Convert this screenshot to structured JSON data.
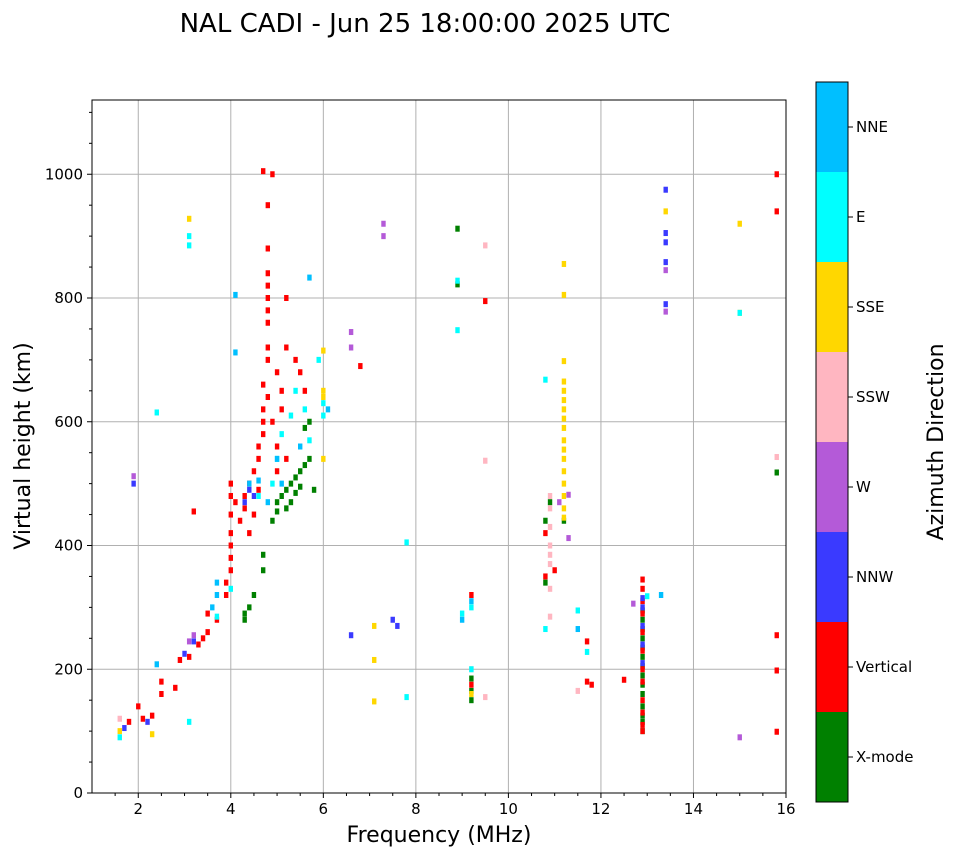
{
  "chart_data": {
    "type": "scatter",
    "title": "NAL CADI - Jun 25 18:00:00 2025 UTC",
    "xlabel": "Frequency (MHz)",
    "ylabel": "Virtual height (km)",
    "xlim": [
      1,
      16
    ],
    "ylim": [
      0,
      1120
    ],
    "xticks": [
      2,
      4,
      6,
      8,
      10,
      12,
      14,
      16
    ],
    "xtick_labels": [
      "2",
      "4",
      "6",
      "8",
      "10",
      "12",
      "14",
      "16"
    ],
    "yticks": [
      0,
      200,
      400,
      600,
      800,
      1000
    ],
    "ytick_labels": [
      "0",
      "200",
      "400",
      "600",
      "800",
      "1000"
    ],
    "grid": true,
    "colorbar": {
      "label": "Azimuth Direction",
      "categories": [
        "X-mode",
        "Vertical",
        "NNW",
        "W",
        "SSW",
        "SSE",
        "E",
        "NNE"
      ],
      "colors": [
        "#008000",
        "#ff0000",
        "#3a3aff",
        "#b45ad8",
        "#ffb6c1",
        "#ffd700",
        "#00ffff",
        "#00bfff"
      ]
    },
    "series": [
      {
        "name": "X-mode",
        "color": "#008000",
        "points": [
          [
            4.3,
            280
          ],
          [
            4.3,
            290
          ],
          [
            4.4,
            300
          ],
          [
            4.5,
            320
          ],
          [
            4.7,
            360
          ],
          [
            4.7,
            385
          ],
          [
            4.9,
            440
          ],
          [
            5.0,
            455
          ],
          [
            5.0,
            470
          ],
          [
            5.1,
            480
          ],
          [
            5.2,
            490
          ],
          [
            5.2,
            460
          ],
          [
            5.3,
            470
          ],
          [
            5.3,
            500
          ],
          [
            5.4,
            485
          ],
          [
            5.4,
            510
          ],
          [
            5.5,
            495
          ],
          [
            5.5,
            520
          ],
          [
            5.6,
            530
          ],
          [
            5.6,
            590
          ],
          [
            5.7,
            600
          ],
          [
            5.7,
            540
          ],
          [
            5.8,
            490
          ],
          [
            8.9,
            822
          ],
          [
            8.9,
            912
          ],
          [
            9.2,
            150
          ],
          [
            9.2,
            165
          ],
          [
            9.2,
            185
          ],
          [
            10.8,
            340
          ],
          [
            10.8,
            440
          ],
          [
            10.9,
            470
          ],
          [
            11.2,
            440
          ],
          [
            12.9,
            100
          ],
          [
            12.9,
            115
          ],
          [
            12.9,
            125
          ],
          [
            12.9,
            140
          ],
          [
            12.9,
            160
          ],
          [
            12.9,
            175
          ],
          [
            12.9,
            190
          ],
          [
            12.9,
            205
          ],
          [
            12.9,
            220
          ],
          [
            12.9,
            235
          ],
          [
            12.9,
            250
          ],
          [
            12.9,
            265
          ],
          [
            12.9,
            280
          ],
          [
            12.9,
            295
          ],
          [
            15.8,
            518
          ]
        ]
      },
      {
        "name": "Vertical",
        "color": "#ff0000",
        "points": [
          [
            1.8,
            115
          ],
          [
            2.0,
            140
          ],
          [
            2.1,
            120
          ],
          [
            2.3,
            125
          ],
          [
            2.5,
            160
          ],
          [
            2.5,
            180
          ],
          [
            2.8,
            170
          ],
          [
            2.9,
            215
          ],
          [
            3.1,
            220
          ],
          [
            3.3,
            240
          ],
          [
            3.4,
            250
          ],
          [
            3.5,
            260
          ],
          [
            3.5,
            290
          ],
          [
            3.7,
            280
          ],
          [
            3.9,
            320
          ],
          [
            3.9,
            340
          ],
          [
            4.0,
            360
          ],
          [
            4.0,
            380
          ],
          [
            4.0,
            400
          ],
          [
            4.0,
            420
          ],
          [
            4.0,
            450
          ],
          [
            4.0,
            480
          ],
          [
            4.0,
            500
          ],
          [
            4.1,
            470
          ],
          [
            4.2,
            440
          ],
          [
            4.3,
            460
          ],
          [
            4.3,
            480
          ],
          [
            4.4,
            420
          ],
          [
            4.4,
            500
          ],
          [
            4.5,
            450
          ],
          [
            4.5,
            520
          ],
          [
            4.6,
            490
          ],
          [
            4.6,
            540
          ],
          [
            4.6,
            560
          ],
          [
            4.7,
            580
          ],
          [
            4.7,
            600
          ],
          [
            4.7,
            620
          ],
          [
            4.7,
            660
          ],
          [
            4.8,
            640
          ],
          [
            4.8,
            700
          ],
          [
            4.8,
            720
          ],
          [
            4.8,
            760
          ],
          [
            4.8,
            780
          ],
          [
            4.8,
            800
          ],
          [
            4.8,
            820
          ],
          [
            4.8,
            840
          ],
          [
            4.8,
            880
          ],
          [
            4.8,
            950
          ],
          [
            4.7,
            1005
          ],
          [
            4.9,
            1000
          ],
          [
            4.9,
            600
          ],
          [
            5.0,
            560
          ],
          [
            5.0,
            520
          ],
          [
            5.0,
            680
          ],
          [
            5.1,
            620
          ],
          [
            5.1,
            650
          ],
          [
            5.2,
            540
          ],
          [
            5.2,
            720
          ],
          [
            5.2,
            800
          ],
          [
            5.4,
            700
          ],
          [
            5.5,
            680
          ],
          [
            5.6,
            650
          ],
          [
            6.8,
            690
          ],
          [
            3.2,
            455
          ],
          [
            9.2,
            320
          ],
          [
            9.2,
            175
          ],
          [
            9.5,
            795
          ],
          [
            10.8,
            350
          ],
          [
            10.8,
            420
          ],
          [
            11.0,
            360
          ],
          [
            11.7,
            245
          ],
          [
            11.7,
            180
          ],
          [
            11.8,
            175
          ],
          [
            12.5,
            183
          ],
          [
            12.9,
            100
          ],
          [
            12.9,
            110
          ],
          [
            12.9,
            130
          ],
          [
            12.9,
            150
          ],
          [
            12.9,
            180
          ],
          [
            12.9,
            200
          ],
          [
            12.9,
            230
          ],
          [
            12.9,
            260
          ],
          [
            12.9,
            290
          ],
          [
            12.9,
            310
          ],
          [
            12.9,
            330
          ],
          [
            12.9,
            345
          ],
          [
            15.8,
            1000
          ],
          [
            15.8,
            940
          ],
          [
            15.8,
            255
          ],
          [
            15.8,
            198
          ],
          [
            15.8,
            99
          ]
        ]
      },
      {
        "name": "NNW",
        "color": "#3a3aff",
        "points": [
          [
            1.9,
            500
          ],
          [
            1.7,
            105
          ],
          [
            2.2,
            115
          ],
          [
            3.0,
            225
          ],
          [
            3.2,
            245
          ],
          [
            4.3,
            470
          ],
          [
            4.4,
            490
          ],
          [
            4.5,
            480
          ],
          [
            6.6,
            255
          ],
          [
            7.5,
            280
          ],
          [
            7.6,
            270
          ],
          [
            12.9,
            210
          ],
          [
            12.9,
            240
          ],
          [
            12.9,
            270
          ],
          [
            12.9,
            300
          ],
          [
            12.9,
            315
          ],
          [
            13.4,
            975
          ],
          [
            13.4,
            905
          ],
          [
            13.4,
            890
          ],
          [
            13.4,
            858
          ],
          [
            13.4,
            790
          ]
        ]
      },
      {
        "name": "W",
        "color": "#b45ad8",
        "points": [
          [
            1.9,
            512
          ],
          [
            3.1,
            245
          ],
          [
            3.2,
            255
          ],
          [
            6.6,
            745
          ],
          [
            6.6,
            720
          ],
          [
            7.3,
            920
          ],
          [
            7.3,
            900
          ],
          [
            11.1,
            470
          ],
          [
            11.3,
            482
          ],
          [
            11.3,
            412
          ],
          [
            12.7,
            306
          ],
          [
            13.4,
            845
          ],
          [
            13.4,
            778
          ],
          [
            15.0,
            90
          ]
        ]
      },
      {
        "name": "SSW",
        "color": "#ffb6c1",
        "points": [
          [
            1.6,
            120
          ],
          [
            9.5,
            885
          ],
          [
            9.5,
            537
          ],
          [
            9.5,
            155
          ],
          [
            9.2,
            200
          ],
          [
            10.9,
            480
          ],
          [
            10.9,
            460
          ],
          [
            10.9,
            430
          ],
          [
            10.9,
            400
          ],
          [
            10.9,
            385
          ],
          [
            10.9,
            370
          ],
          [
            10.9,
            330
          ],
          [
            10.9,
            285
          ],
          [
            11.5,
            165
          ],
          [
            15.8,
            543
          ]
        ]
      },
      {
        "name": "SSE",
        "color": "#ffd700",
        "points": [
          [
            1.6,
            100
          ],
          [
            2.3,
            95
          ],
          [
            3.1,
            928
          ],
          [
            6.0,
            715
          ],
          [
            6.0,
            650
          ],
          [
            6.0,
            640
          ],
          [
            6.0,
            540
          ],
          [
            7.1,
            270
          ],
          [
            7.1,
            215
          ],
          [
            7.1,
            148
          ],
          [
            9.2,
            160
          ],
          [
            11.2,
            855
          ],
          [
            11.2,
            805
          ],
          [
            11.2,
            698
          ],
          [
            11.2,
            665
          ],
          [
            11.2,
            650
          ],
          [
            11.2,
            635
          ],
          [
            11.2,
            620
          ],
          [
            11.2,
            605
          ],
          [
            11.2,
            590
          ],
          [
            11.2,
            570
          ],
          [
            11.2,
            555
          ],
          [
            11.2,
            540
          ],
          [
            11.2,
            520
          ],
          [
            11.2,
            500
          ],
          [
            11.2,
            480
          ],
          [
            11.2,
            460
          ],
          [
            11.2,
            445
          ],
          [
            13.4,
            940
          ],
          [
            15.0,
            920
          ],
          [
            15.0,
            776
          ]
        ]
      },
      {
        "name": "E",
        "color": "#00ffff",
        "points": [
          [
            1.6,
            90
          ],
          [
            2.4,
            615
          ],
          [
            3.1,
            900
          ],
          [
            3.1,
            885
          ],
          [
            3.1,
            115
          ],
          [
            3.7,
            285
          ],
          [
            4.0,
            330
          ],
          [
            4.6,
            480
          ],
          [
            4.9,
            500
          ],
          [
            5.0,
            540
          ],
          [
            5.1,
            580
          ],
          [
            5.3,
            610
          ],
          [
            5.4,
            650
          ],
          [
            5.6,
            620
          ],
          [
            5.7,
            570
          ],
          [
            5.9,
            700
          ],
          [
            6.0,
            630
          ],
          [
            6.0,
            610
          ],
          [
            7.8,
            405
          ],
          [
            7.8,
            155
          ],
          [
            8.9,
            748
          ],
          [
            8.9,
            828
          ],
          [
            9.0,
            290
          ],
          [
            9.2,
            300
          ],
          [
            9.2,
            200
          ],
          [
            10.8,
            668
          ],
          [
            10.8,
            265
          ],
          [
            11.5,
            295
          ],
          [
            11.7,
            228
          ],
          [
            13.0,
            318
          ],
          [
            15.0,
            776
          ]
        ]
      },
      {
        "name": "NNE",
        "color": "#00bfff",
        "points": [
          [
            2.4,
            208
          ],
          [
            3.6,
            300
          ],
          [
            3.7,
            320
          ],
          [
            3.7,
            340
          ],
          [
            4.1,
            805
          ],
          [
            4.1,
            712
          ],
          [
            4.4,
            500
          ],
          [
            4.6,
            505
          ],
          [
            4.8,
            470
          ],
          [
            5.0,
            540
          ],
          [
            5.1,
            500
          ],
          [
            5.5,
            560
          ],
          [
            5.7,
            833
          ],
          [
            6.1,
            620
          ],
          [
            9.0,
            280
          ],
          [
            9.2,
            310
          ],
          [
            11.5,
            265
          ],
          [
            13.3,
            320
          ]
        ]
      }
    ]
  }
}
